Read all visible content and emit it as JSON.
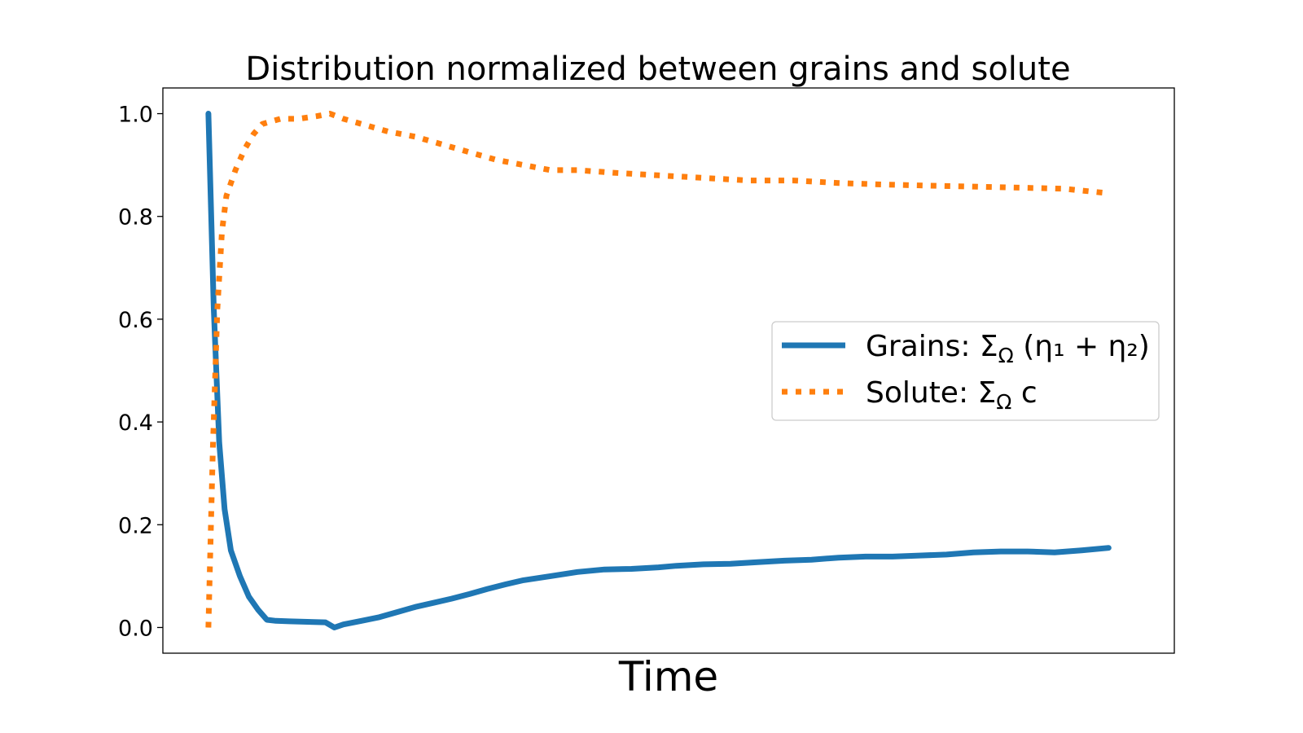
{
  "chart_data": {
    "type": "line",
    "title": "Distribution normalized between grains and solute",
    "xlabel": "Time",
    "ylabel": "",
    "ylim": [
      -0.05,
      1.05
    ],
    "yticks": [
      "0.0",
      "0.2",
      "0.4",
      "0.6",
      "0.8",
      "1.0"
    ],
    "ytick_values": [
      0.0,
      0.2,
      0.4,
      0.6,
      0.8,
      1.0
    ],
    "xticks_visible": false,
    "grid": false,
    "legend_position": "center-right",
    "series": [
      {
        "name": "Grains: Σ_Ω (η₁ + η₂)",
        "legend_parts": {
          "prefix": "Grains: Σ",
          "sub": "Ω",
          "expr": " (η₁ + η₂)"
        },
        "style": "solid",
        "color": "#1f77b4",
        "x": [
          0.0,
          0.006,
          0.012,
          0.018,
          0.025,
          0.035,
          0.045,
          0.055,
          0.065,
          0.075,
          0.09,
          0.11,
          0.13,
          0.14,
          0.15,
          0.17,
          0.19,
          0.21,
          0.23,
          0.25,
          0.27,
          0.29,
          0.31,
          0.33,
          0.35,
          0.38,
          0.41,
          0.44,
          0.47,
          0.5,
          0.52,
          0.55,
          0.58,
          0.61,
          0.64,
          0.67,
          0.7,
          0.73,
          0.76,
          0.79,
          0.82,
          0.85,
          0.88,
          0.91,
          0.94,
          0.97,
          1.0
        ],
        "y": [
          1.0,
          0.62,
          0.36,
          0.23,
          0.15,
          0.1,
          0.06,
          0.035,
          0.015,
          0.013,
          0.012,
          0.011,
          0.01,
          0.0,
          0.006,
          0.013,
          0.02,
          0.03,
          0.04,
          0.048,
          0.056,
          0.065,
          0.075,
          0.084,
          0.092,
          0.1,
          0.108,
          0.113,
          0.114,
          0.117,
          0.12,
          0.123,
          0.124,
          0.127,
          0.13,
          0.132,
          0.136,
          0.138,
          0.138,
          0.14,
          0.142,
          0.146,
          0.148,
          0.148,
          0.146,
          0.15,
          0.155
        ]
      },
      {
        "name": "Solute: Σ_Ω c",
        "legend_parts": {
          "prefix": "Solute: Σ",
          "sub": "Ω",
          "expr": " c"
        },
        "style": "dotted",
        "color": "#ff7f0e",
        "x": [
          0.0,
          0.005,
          0.01,
          0.015,
          0.02,
          0.03,
          0.04,
          0.05,
          0.06,
          0.07,
          0.08,
          0.1,
          0.12,
          0.135,
          0.15,
          0.17,
          0.2,
          0.23,
          0.26,
          0.29,
          0.32,
          0.35,
          0.38,
          0.41,
          0.45,
          0.5,
          0.55,
          0.6,
          0.65,
          0.7,
          0.75,
          0.8,
          0.85,
          0.9,
          0.95,
          1.0
        ],
        "y": [
          0.0,
          0.35,
          0.62,
          0.77,
          0.84,
          0.89,
          0.93,
          0.96,
          0.98,
          0.985,
          0.99,
          0.99,
          0.995,
          1.0,
          0.99,
          0.98,
          0.965,
          0.955,
          0.94,
          0.925,
          0.91,
          0.9,
          0.89,
          0.89,
          0.885,
          0.88,
          0.875,
          0.87,
          0.87,
          0.865,
          0.862,
          0.86,
          0.858,
          0.856,
          0.854,
          0.845
        ]
      }
    ]
  }
}
